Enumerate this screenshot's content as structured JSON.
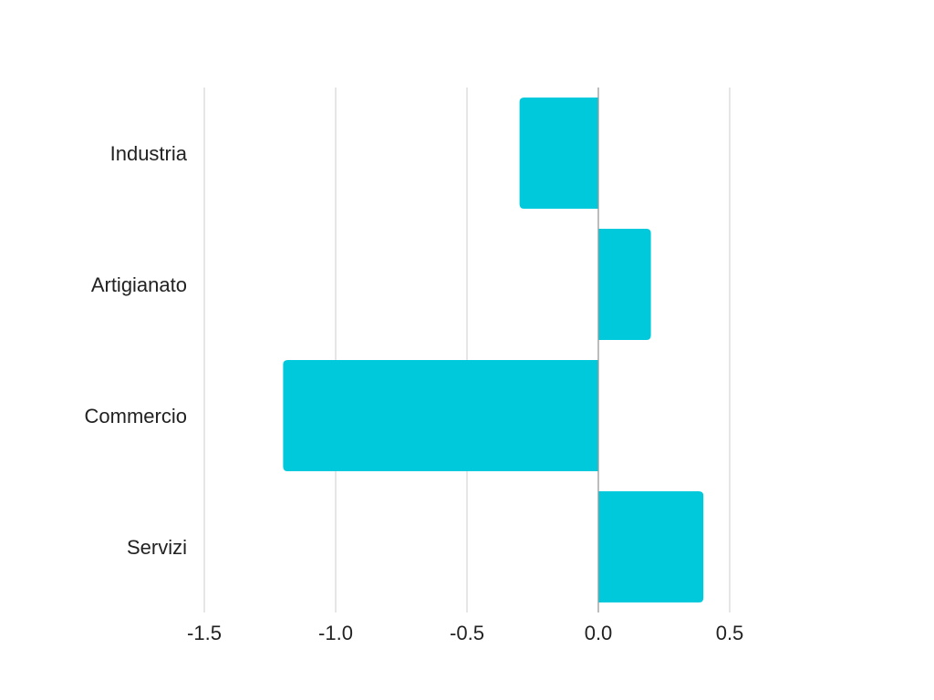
{
  "chart_data": {
    "type": "bar",
    "orientation": "horizontal",
    "categories": [
      "Industria",
      "Artigianato",
      "Commercio",
      "Servizi"
    ],
    "values": [
      -0.3,
      0.2,
      -1.2,
      0.4
    ],
    "xlim": [
      -1.5,
      0.5
    ],
    "xticks": [
      "-1.5",
      "-1.0",
      "-0.5",
      "0.0",
      "0.5"
    ],
    "xtick_values": [
      -1.5,
      -1.0,
      -0.5,
      0.0,
      0.5
    ],
    "title": "",
    "xlabel": "",
    "ylabel": "",
    "grid": "vertical",
    "legend": "none",
    "colors": {
      "bar": "#00c9dc",
      "grid": "#d9d9d9",
      "zero_line": "#999999",
      "text": "#222222"
    }
  }
}
